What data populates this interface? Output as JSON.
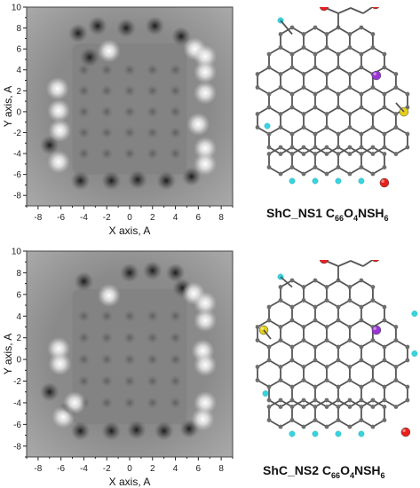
{
  "panels": [
    {
      "id": "top",
      "chart_data": {
        "type": "heatmap",
        "title": "",
        "xlabel": "X axis, A",
        "ylabel": "Y axis, A",
        "xlim": [
          -9,
          9
        ],
        "ylim": [
          -9,
          10
        ],
        "xticks": [
          -8,
          -6,
          -4,
          -2,
          0,
          2,
          4,
          6,
          8
        ],
        "yticks": [
          -8,
          -6,
          -4,
          -2,
          0,
          2,
          4,
          6,
          8,
          10
        ],
        "bright_spots": [
          {
            "x": -1.8,
            "y": 5.8
          },
          {
            "x": -6.3,
            "y": 2.2
          },
          {
            "x": -6.2,
            "y": 0.1
          },
          {
            "x": -6.1,
            "y": -1.8
          },
          {
            "x": -6.2,
            "y": -4.8
          },
          {
            "x": 5.7,
            "y": 6.0
          },
          {
            "x": 6.6,
            "y": 5.3
          },
          {
            "x": 6.6,
            "y": 3.8
          },
          {
            "x": 6.6,
            "y": 1.8
          },
          {
            "x": 6.6,
            "y": -3.5
          },
          {
            "x": 6.6,
            "y": -5.0
          },
          {
            "x": 6.0,
            "y": -1.2
          }
        ],
        "dark_spots": [
          {
            "x": -4.5,
            "y": 7.5
          },
          {
            "x": -2.8,
            "y": 8.2
          },
          {
            "x": -0.3,
            "y": 8.0
          },
          {
            "x": 2.2,
            "y": 8.2
          },
          {
            "x": 4.5,
            "y": 7.2
          },
          {
            "x": -7.0,
            "y": -3.2
          },
          {
            "x": -4.3,
            "y": -6.6
          },
          {
            "x": -1.6,
            "y": -6.6
          },
          {
            "x": 0.7,
            "y": -6.5
          },
          {
            "x": 3.2,
            "y": -6.6
          },
          {
            "x": 5.4,
            "y": -6.2
          },
          {
            "x": -3.5,
            "y": 5.2
          }
        ]
      },
      "caption": {
        "label": "ShC_NS1 ",
        "formula": [
          [
            "C",
            "66"
          ],
          [
            "O",
            "4"
          ],
          [
            "NSH",
            "6"
          ]
        ]
      }
    },
    {
      "id": "bottom",
      "chart_data": {
        "type": "heatmap",
        "title": "",
        "xlabel": "X axis, A",
        "ylabel": "Y axis, A",
        "xlim": [
          -9,
          9
        ],
        "ylim": [
          -9,
          10
        ],
        "xticks": [
          -8,
          -6,
          -4,
          -2,
          0,
          2,
          4,
          6,
          8
        ],
        "yticks": [
          -8,
          -6,
          -4,
          -2,
          0,
          2,
          4,
          6,
          8,
          10
        ],
        "bright_spots": [
          {
            "x": -1.8,
            "y": 5.9
          },
          {
            "x": -6.2,
            "y": 1.0
          },
          {
            "x": -6.1,
            "y": -0.4
          },
          {
            "x": -5.8,
            "y": -5.3
          },
          {
            "x": -4.8,
            "y": -4.0
          },
          {
            "x": 5.6,
            "y": 6.1
          },
          {
            "x": 6.6,
            "y": 5.2
          },
          {
            "x": 6.6,
            "y": 3.6
          },
          {
            "x": 6.4,
            "y": 0.8
          },
          {
            "x": 6.6,
            "y": -0.5
          },
          {
            "x": 6.6,
            "y": -4.0
          },
          {
            "x": 6.4,
            "y": -5.5
          }
        ],
        "dark_spots": [
          {
            "x": 0.0,
            "y": 8.0
          },
          {
            "x": 2.0,
            "y": 8.2
          },
          {
            "x": 4.0,
            "y": 8.0
          },
          {
            "x": -4.0,
            "y": 7.2
          },
          {
            "x": -7.0,
            "y": -3.0
          },
          {
            "x": -4.3,
            "y": -6.6
          },
          {
            "x": -1.6,
            "y": -6.6
          },
          {
            "x": 0.6,
            "y": -6.5
          },
          {
            "x": 3.0,
            "y": -6.6
          },
          {
            "x": 5.2,
            "y": -6.4
          },
          {
            "x": -5.5,
            "y": -4.8
          },
          {
            "x": 4.6,
            "y": 6.6
          }
        ]
      },
      "caption": {
        "label": "ShC_NS2 ",
        "formula": [
          [
            "C",
            "66"
          ],
          [
            "O",
            "4"
          ],
          [
            "NSH",
            "6"
          ]
        ]
      }
    }
  ],
  "molecule_colors": {
    "carbon": "#6e6e6e",
    "bond": "#555555",
    "oxygen": "#e8201c",
    "hydrogen": "#39d3e0",
    "nitrogen": "#9b33d6",
    "sulfur": "#e6cf1a"
  }
}
